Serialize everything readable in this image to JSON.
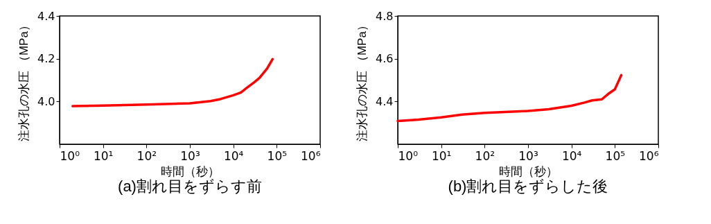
{
  "chart_data": [
    {
      "type": "line",
      "title": "(a)割れ目をずらす前",
      "xlabel": "時間（秒）",
      "ylabel": "注水孔の水圧 （MPa）",
      "log": "x",
      "grid": false,
      "series": [
        {
          "color": "#ff0000",
          "x": [
            2,
            10,
            100,
            1000,
            3000,
            5000,
            10000,
            15000,
            20000,
            30000,
            40000,
            60000,
            80000
          ],
          "values": [
            3.978,
            3.981,
            3.986,
            3.991,
            4.002,
            4.011,
            4.029,
            4.042,
            4.062,
            4.089,
            4.11,
            4.154,
            4.198
          ]
        }
      ],
      "xlim": [
        1,
        1000000
      ],
      "xticks": [
        {
          "value": 1,
          "label": "10⁰"
        },
        {
          "value": 10,
          "label": "10¹"
        },
        {
          "value": 100,
          "label": "10²"
        },
        {
          "value": 1000,
          "label": "10³"
        },
        {
          "value": 10000,
          "label": "10⁴"
        },
        {
          "value": 100000,
          "label": "10⁵"
        },
        {
          "value": 1000000,
          "label": "10⁶"
        }
      ],
      "ylim": [
        3.8,
        4.4
      ],
      "yticks": [
        {
          "value": 4,
          "label": "4.0"
        },
        4.2,
        4.4
      ]
    },
    {
      "type": "line",
      "title": "(b)割れ目をずらした後",
      "xlabel": "時間（秒）",
      "ylabel": "注水孔の水圧 （MPa）",
      "log": "x",
      "grid": false,
      "series": [
        {
          "color": "#ff0000",
          "x": [
            1,
            3,
            10,
            30,
            100,
            1000,
            3000,
            10000,
            20000,
            30000,
            50000,
            70000,
            100000,
            140000
          ],
          "values": [
            4.309,
            4.315,
            4.326,
            4.339,
            4.347,
            4.356,
            4.364,
            4.38,
            4.395,
            4.405,
            4.41,
            4.435,
            4.457,
            4.523
          ]
        }
      ],
      "xlim": [
        1,
        1000000
      ],
      "xticks": [
        {
          "value": 1,
          "label": "10⁰"
        },
        {
          "value": 10,
          "label": "10¹"
        },
        {
          "value": 100,
          "label": "10²"
        },
        {
          "value": 1000,
          "label": "10³"
        },
        {
          "value": 10000,
          "label": "10⁴"
        },
        {
          "value": 100000,
          "label": "10⁵"
        },
        {
          "value": 1000000,
          "label": "10⁶"
        }
      ],
      "ylim": [
        4.2,
        4.8
      ],
      "yticks": [
        4.4,
        4.6,
        4.8
      ]
    }
  ]
}
